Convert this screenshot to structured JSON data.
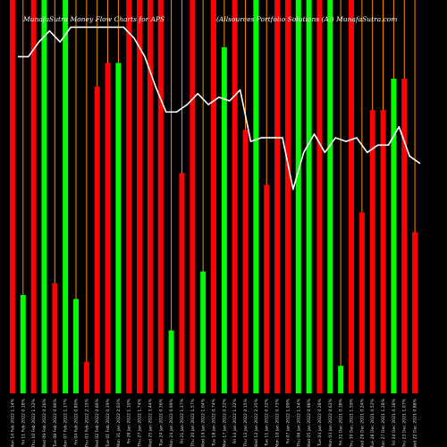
{
  "chart_data": {
    "type": "bar",
    "title_left": "MunafaSutra Money Flow Charts for APS",
    "title_right": "(Allsources Portfolio Solutions (A)) MunafaSutra.com",
    "colors": {
      "background": "#000000",
      "up": "#00ff00",
      "down": "#ff0000",
      "line": "#ffffff",
      "thin_bar": "#ff8c00"
    },
    "bars": [
      {
        "label": "Mon 14 Feb 2022 1.14%",
        "value": 100,
        "color": "down"
      },
      {
        "label": "Fri 11 Feb 2022 0.18%",
        "value": 25,
        "color": "up"
      },
      {
        "label": "Thu 10 Feb 2022 1.32%",
        "value": 100,
        "color": "down"
      },
      {
        "label": "Wed 09 Feb 2022 0.26%",
        "value": 100,
        "color": "up"
      },
      {
        "label": "Tue 08 Feb 2022 0.96%",
        "value": 28,
        "color": "down"
      },
      {
        "label": "Mon 07 Feb 2022 1.17%",
        "value": 100,
        "color": "up"
      },
      {
        "label": "Fri 04 Feb 2022 0.80%",
        "value": 24,
        "color": "up"
      },
      {
        "label": "Thu 03 Feb 2022 2.15%",
        "value": 8,
        "color": "down"
      },
      {
        "label": "Wed 02 Feb 2022 0.66%",
        "value": 78,
        "color": "down"
      },
      {
        "label": "Tue 01 Feb 2022 0.39%",
        "value": 84,
        "color": "down"
      },
      {
        "label": "Mon 31 Jan 2022 2.03%",
        "value": 84,
        "color": "up"
      },
      {
        "label": "Fri 28 Jan 2022 1.10%",
        "value": 100,
        "color": "down"
      },
      {
        "label": "Thu 27 Jan 2022 1.74%",
        "value": 100,
        "color": "down"
      },
      {
        "label": "Wed 25 Jan 2022 3.44%",
        "value": 100,
        "color": "down"
      },
      {
        "label": "Tue 24 Jan 2022 0.36%",
        "value": 100,
        "color": "down"
      },
      {
        "label": "Mon 24 Jan 2022 0.99%",
        "value": 16,
        "color": "up"
      },
      {
        "label": "Fri 21 Jan 2022 1.37%",
        "value": 56,
        "color": "down"
      },
      {
        "label": "Thu 20 Jan 2022 1.57%",
        "value": 100,
        "color": "down"
      },
      {
        "label": "Wed 19 Jan 2022 1.04%",
        "value": 31,
        "color": "up"
      },
      {
        "label": "Tue 18 Jan 2022 0.74%",
        "value": 100,
        "color": "down"
      },
      {
        "label": "Mon 17 Jan 2022 0.22%",
        "value": 88,
        "color": "up"
      },
      {
        "label": "Fri 14 Jan 2022 1.32%",
        "value": 100,
        "color": "down"
      },
      {
        "label": "Thu 13 Jan 2022 0.15%",
        "value": 67,
        "color": "down"
      },
      {
        "label": "Wed 12 Jan 2022 2.35%",
        "value": 100,
        "color": "up"
      },
      {
        "label": "Tue 11 Jan 2022 0.32%",
        "value": 53,
        "color": "down"
      },
      {
        "label": "Mon 10 Jan 2022 0.73%",
        "value": 100,
        "color": "down"
      },
      {
        "label": "Fri 07 Jan 2022 1.09%",
        "value": 100,
        "color": "down"
      },
      {
        "label": "Thu 06 Jan 2022 1.54%",
        "value": 100,
        "color": "up"
      },
      {
        "label": "Wed 05 Jan 2022 0.98%",
        "value": 100,
        "color": "up"
      },
      {
        "label": "Tue 04 Jan 2022 0.28%",
        "value": 100,
        "color": "down"
      },
      {
        "label": "Mon 03 Jan 2022 0.62%",
        "value": 100,
        "color": "up"
      },
      {
        "label": "Fri 31 Dec 2021 0.38%",
        "value": 7,
        "color": "up"
      },
      {
        "label": "Thu 30 Dec 2021 1.59%",
        "value": 100,
        "color": "down"
      },
      {
        "label": "Wed 29 Dec 2021 0.24%",
        "value": 46,
        "color": "down"
      },
      {
        "label": "Tue 28 Dec 2021 0.52%",
        "value": 72,
        "color": "down"
      },
      {
        "label": "Mon 27 Dec 2021 1.28%",
        "value": 72,
        "color": "down"
      },
      {
        "label": "Fri 24 Dec 2021 0.18%",
        "value": 80,
        "color": "up"
      },
      {
        "label": "Thu 23 Dec 2021 1.07%",
        "value": 80,
        "color": "down"
      },
      {
        "label": "Wed 22 Dec 2021 0.88%",
        "value": 41,
        "color": "down"
      }
    ],
    "line": [
      88,
      88,
      92,
      95,
      92,
      96,
      96,
      96,
      96,
      96,
      96,
      93,
      88,
      80,
      73,
      73,
      75,
      78,
      75,
      77,
      76,
      79,
      65,
      66,
      66,
      66,
      52,
      62,
      67,
      62,
      66,
      65,
      66,
      62,
      64,
      64,
      69,
      61,
      59
    ],
    "ylim": [
      0,
      100
    ],
    "grid": false,
    "legend": "none"
  }
}
